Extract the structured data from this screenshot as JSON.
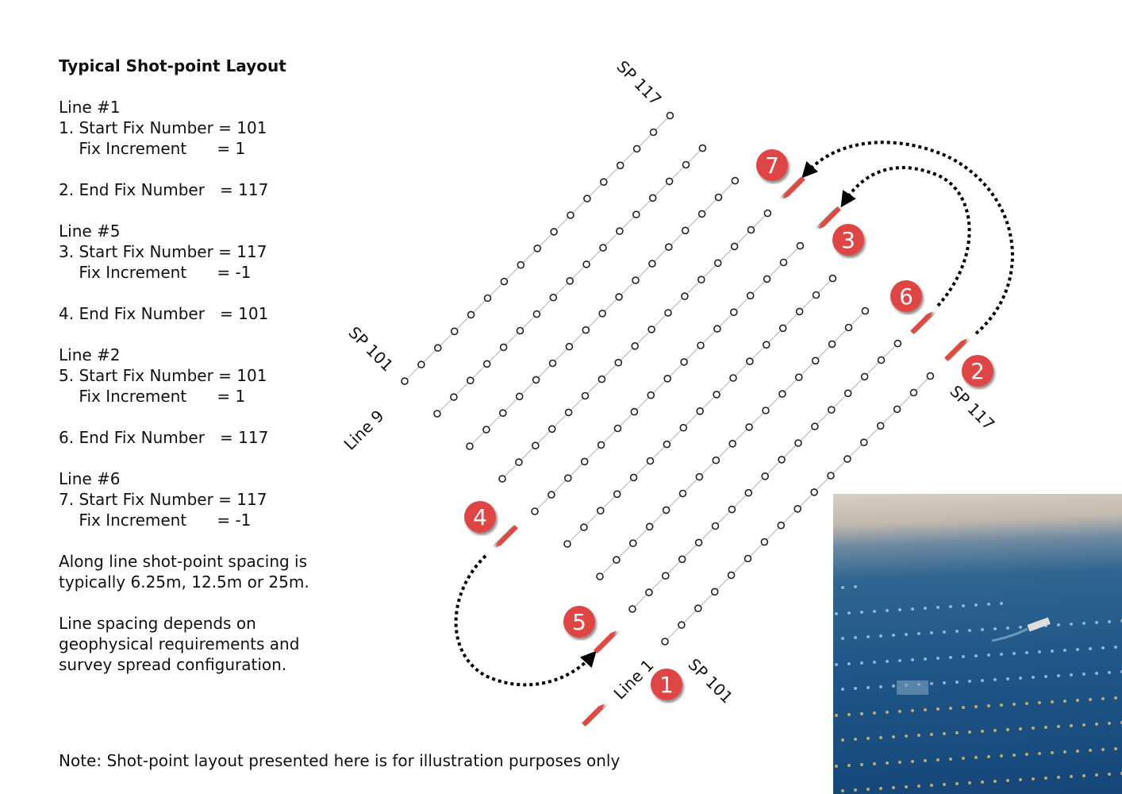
{
  "title": "Typical Shot-point Layout",
  "blocks": [
    {
      "heading": "Line #1",
      "rows": [
        "1. Start Fix Number = 101",
        "    Fix Increment      = 1",
        "",
        "2. End Fix Number   = 117"
      ]
    },
    {
      "heading": "Line #5",
      "rows": [
        "3. Start Fix Number = 117",
        "    Fix Increment      = -1",
        "",
        "4. End Fix Number   = 101"
      ]
    },
    {
      "heading": "Line #2",
      "rows": [
        "5. Start Fix Number = 101",
        "    Fix Increment      = 1",
        "",
        "6. End Fix Number   = 117"
      ]
    },
    {
      "heading": "Line #6",
      "rows": [
        "7. Start Fix Number = 117",
        "    Fix Increment      = -1"
      ]
    }
  ],
  "spacing_text": "Along line shot-point spacing is typically 6.25m, 12.5m or 25m.",
  "line_spacing_text": "Line spacing depends on geophysical requirements and survey spread configuration.",
  "note": "Note: Shot-point layout presented here is for illustration purposes only",
  "diagram": {
    "line_count": 9,
    "fix_range": [
      101,
      117
    ],
    "labels": {
      "sp117_top": "SP 117",
      "sp101_left": "SP 101",
      "line9": "Line 9",
      "line1": "Line 1",
      "sp101_bottom": "SP 101",
      "sp117_right": "SP 117"
    },
    "markers": [
      "1",
      "2",
      "3",
      "4",
      "5",
      "6",
      "7"
    ],
    "colors": {
      "marker": "#e04545",
      "vessel": "#e04a3c",
      "points": "#222222",
      "line": "#bbbbbb"
    }
  },
  "photo": {
    "subject": "aerial seismic survey vessel at sea"
  }
}
